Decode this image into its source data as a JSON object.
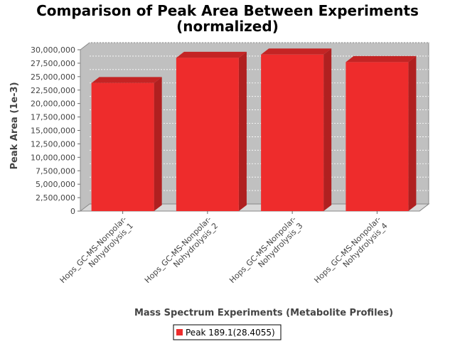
{
  "chart_data": {
    "type": "bar",
    "title_line1": "Comparison of Peak Area Between Experiments",
    "title_line2": "(normalized)",
    "xlabel": "Mass Spectrum Experiments (Metabolite Profiles)",
    "ylabel": "Peak Area (1e-3)",
    "ylim": [
      0,
      30000000
    ],
    "yticks": [
      0,
      2500000,
      5000000,
      7500000,
      10000000,
      12500000,
      15000000,
      17500000,
      20000000,
      22500000,
      25000000,
      27500000,
      30000000
    ],
    "ytick_labels": [
      "0",
      "2,500,000",
      "5,000,000",
      "7,500,000",
      "10,000,000",
      "12,500,000",
      "15,000,000",
      "17,500,000",
      "20,000,000",
      "22,500,000",
      "25,000,000",
      "27,500,000",
      "30,000,000"
    ],
    "categories": [
      [
        "Hops_GC-MS-Nonpolar-",
        "Nohydrolysis_1"
      ],
      [
        "Hops_GC-MS-Nonpolar-",
        "Nohydrolysis_2"
      ],
      [
        "Hops_GC-MS-Nonpolar-",
        "Nohydrolysis_3"
      ],
      [
        "Hops_GC-MS-Nonpolar-",
        "Nohydrolysis_4"
      ]
    ],
    "series": [
      {
        "name": "Peak 189.1(28.4055)",
        "values": [
          23800000,
          28500000,
          29100000,
          27700000
        ],
        "color": "#ee2c2c"
      }
    ],
    "grid": true,
    "legend_position": "bottom",
    "plot_background": "#c0c0c0"
  }
}
